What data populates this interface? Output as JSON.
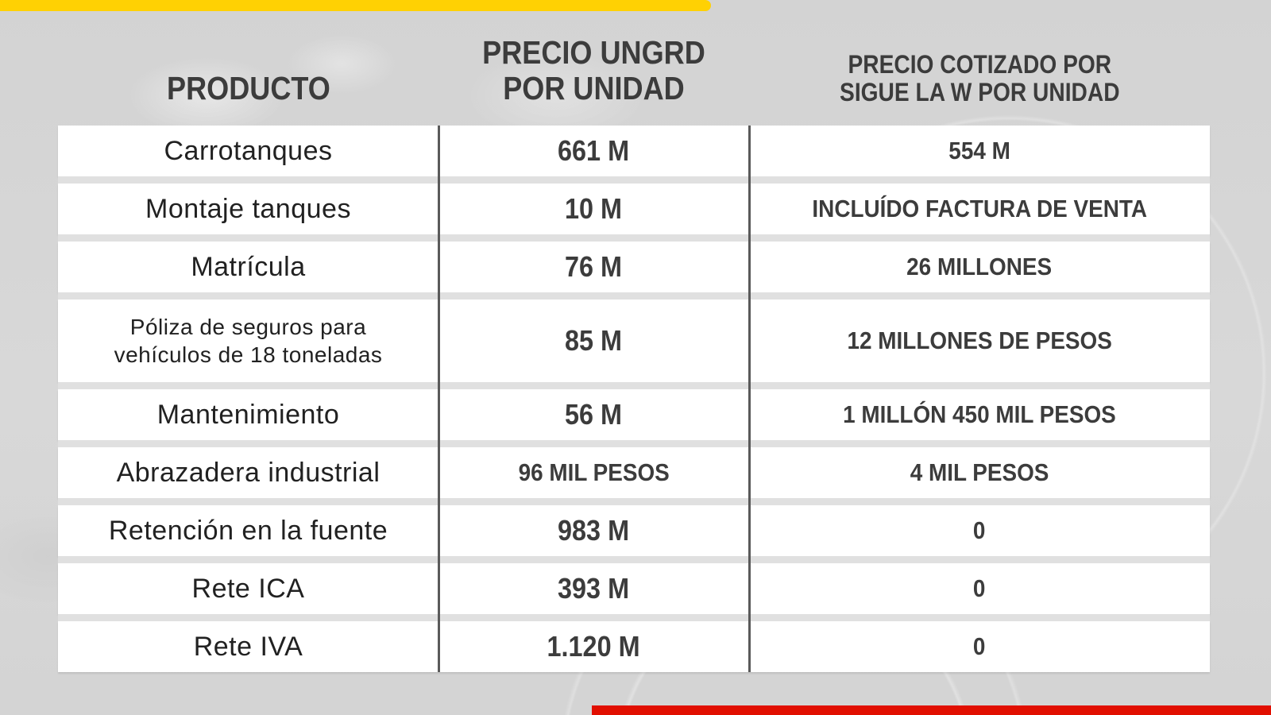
{
  "colors": {
    "background": "#d5d5d5",
    "row_background": "#ffffff",
    "row_gap": "#e0e0e0",
    "column_divider": "#5a5a5a",
    "header_text": "#3c3c3c",
    "product_text": "#212121",
    "value_text": "#3c3c3c",
    "top_bar": "#ffd103",
    "bottom_bar": "#e10f00"
  },
  "chart_data": {
    "type": "table",
    "columns": [
      "PRODUCTO",
      "PRECIO UNGRD\nPOR UNIDAD",
      "PRECIO COTIZADO POR\nSIGUE LA W POR UNIDAD"
    ],
    "rows": [
      [
        "Carrotanques",
        "661 M",
        "554 M"
      ],
      [
        "Montaje tanques",
        "10 M",
        "INCLUÍDO FACTURA DE VENTA"
      ],
      [
        "Matrícula",
        "76 M",
        "26 MILLONES"
      ],
      [
        "Póliza de seguros para\nvehículos de 18 toneladas",
        "85 M",
        "12 MILLONES DE PESOS"
      ],
      [
        "Mantenimiento",
        "56 M",
        "1 MILLÓN 450 MIL PESOS"
      ],
      [
        "Abrazadera industrial",
        "96 MIL PESOS",
        "4 MIL PESOS"
      ],
      [
        "Retención en la fuente",
        "983 M",
        "0"
      ],
      [
        "Rete ICA",
        "393 M",
        "0"
      ],
      [
        "Rete IVA",
        "1.120 M",
        "0"
      ]
    ]
  }
}
